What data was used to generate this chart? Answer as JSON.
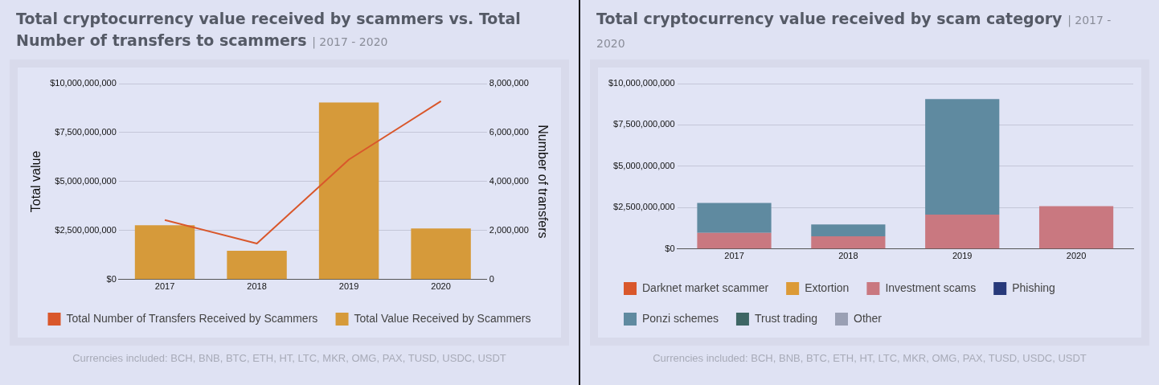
{
  "chart_data": [
    {
      "type": "bar",
      "title": "Total cryptocurrency value received by scammers vs. Total Number of transfers to scammers",
      "subtitle": "| 2017 - 2020",
      "ylabel": "Total value",
      "y2label": "Number of transfers",
      "categories": [
        "2017",
        "2018",
        "2019",
        "2020"
      ],
      "series": [
        {
          "name": "Total Number of Transfers Received by Scammers",
          "type": "line",
          "axis": "y2",
          "color": "#d9572b",
          "values": [
            2430000,
            1470000,
            4900000,
            7280000
          ]
        },
        {
          "name": "Total Value Received by Scammers",
          "type": "bar",
          "color": "#d69a3a",
          "values": [
            2770000000,
            1470000000,
            9040000000,
            2610000000
          ]
        }
      ],
      "ylim": [
        0,
        10000000000
      ],
      "yticks": [
        {
          "value": 0,
          "label": "$0"
        },
        {
          "value": 2500000000,
          "label": "$2,500,000,000"
        },
        {
          "value": 5000000000,
          "label": "$5,000,000,000"
        },
        {
          "value": 7500000000,
          "label": "$7,500,000,000"
        },
        {
          "value": 10000000000,
          "label": "$10,000,000,000"
        }
      ],
      "y2lim": [
        0,
        8000000
      ],
      "y2ticks": [
        0,
        {
          "value": 2000000,
          "label": "2,000,000"
        },
        {
          "value": 4000000,
          "label": "4,000,000"
        },
        {
          "value": 6000000,
          "label": "6,000,000"
        },
        {
          "value": 8000000,
          "label": "8,000,000"
        }
      ],
      "grid": "y",
      "legend": "bottom",
      "annotations": [
        "Currencies included: BCH, BNB, BTC, ETH, HT, LTC, MKR, OMG, PAX, TUSD, USDC, USDT"
      ]
    },
    {
      "type": "bar",
      "stacked": true,
      "title": "Total cryptocurrency value received by scam category",
      "subtitle": "| 2017 - 2020",
      "categories": [
        "2017",
        "2018",
        "2019",
        "2020"
      ],
      "series": [
        {
          "name": "Darknet market scammer",
          "color": "#d9572b",
          "values": [
            0,
            0,
            0,
            0
          ]
        },
        {
          "name": "Extortion",
          "color": "#dc9a36",
          "values": [
            0,
            0,
            0,
            30000000
          ]
        },
        {
          "name": "Investment scams",
          "color": "#c97880",
          "values": [
            980000000,
            770000000,
            2080000000,
            2560000000
          ]
        },
        {
          "name": "Phishing",
          "color": "#27397a",
          "values": [
            0,
            0,
            0,
            0
          ]
        },
        {
          "name": "Ponzi schemes",
          "color": "#5f8aa0",
          "values": [
            1810000000,
            720000000,
            6980000000,
            null
          ]
        },
        {
          "name": "Trust trading",
          "color": "#3e6664",
          "values": [
            0,
            0,
            0,
            0
          ]
        },
        {
          "name": "Other",
          "color": "#9aa0b4",
          "values": [
            0,
            0,
            0,
            0
          ]
        }
      ],
      "ylim": [
        0,
        10000000000
      ],
      "yticks": [
        {
          "value": 0,
          "label": "$0"
        },
        {
          "value": 2500000000,
          "label": "$2,500,000,000"
        },
        {
          "value": 5000000000,
          "label": "$5,000,000,000"
        },
        {
          "value": 7500000000,
          "label": "$7,500,000,000"
        },
        {
          "value": 10000000000,
          "label": "$10,000,000,000"
        }
      ],
      "grid": "y",
      "legend": "bottom",
      "annotations": [
        "Currencies included: BCH, BNB, BTC, ETH, HT, LTC, MKR, OMG, PAX, TUSD, USDC, USDT"
      ]
    }
  ]
}
